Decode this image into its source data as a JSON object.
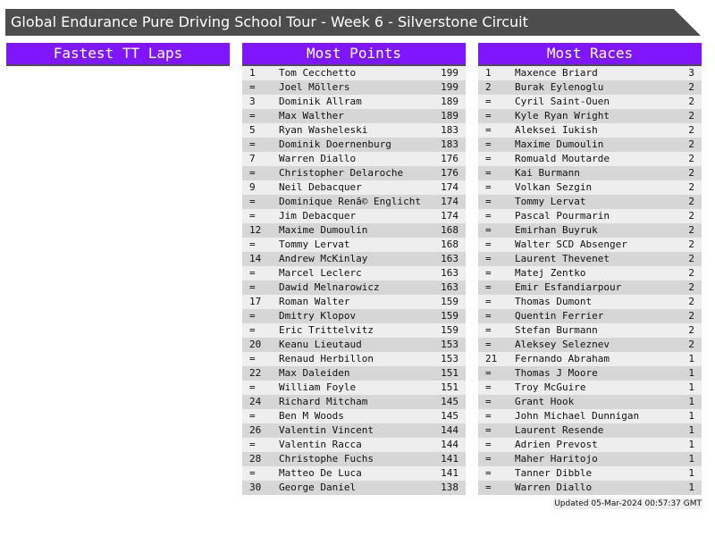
{
  "title": "Global Endurance Pure Driving School Tour - Week 6 - Silverstone Circuit",
  "colors": {
    "header_bg": "#8015ff",
    "title_bg": "#4d4d4d",
    "row_light": "#eeeeee",
    "row_dark": "#d6d6d6"
  },
  "panels": {
    "fastest_tt": {
      "title": "Fastest TT Laps",
      "rows": []
    },
    "most_points": {
      "title": "Most Points",
      "rows": [
        [
          "1",
          "Tom Cecchetto",
          "199"
        ],
        [
          "=",
          "Joel Möllers",
          "199"
        ],
        [
          "3",
          "Dominik Allram",
          "189"
        ],
        [
          "=",
          "Max Walther",
          "189"
        ],
        [
          "5",
          "Ryan Washeleski",
          "183"
        ],
        [
          "=",
          "Dominik Doernenburg",
          "183"
        ],
        [
          "7",
          "Warren Diallo",
          "176"
        ],
        [
          "=",
          "Christopher Delaroche",
          "176"
        ],
        [
          "9",
          "Neil Debacquer",
          "174"
        ],
        [
          "=",
          "Dominique Renã© Englicht",
          "174"
        ],
        [
          "=",
          "Jim Debacquer",
          "174"
        ],
        [
          "12",
          "Maxime Dumoulin",
          "168"
        ],
        [
          "=",
          "Tommy Lervat",
          "168"
        ],
        [
          "14",
          "Andrew McKinlay",
          "163"
        ],
        [
          "=",
          "Marcel Leclerc",
          "163"
        ],
        [
          "=",
          "Dawid Melnarowicz",
          "163"
        ],
        [
          "17",
          "Roman Walter",
          "159"
        ],
        [
          "=",
          "Dmitry Klopov",
          "159"
        ],
        [
          "=",
          "Eric Trittelvitz",
          "159"
        ],
        [
          "20",
          "Keanu Lieutaud",
          "153"
        ],
        [
          "=",
          "Renaud Herbillon",
          "153"
        ],
        [
          "22",
          "Max Daleiden",
          "151"
        ],
        [
          "=",
          "William Foyle",
          "151"
        ],
        [
          "24",
          "Richard Mitcham",
          "145"
        ],
        [
          "=",
          "Ben M Woods",
          "145"
        ],
        [
          "26",
          "Valentin Vincent",
          "144"
        ],
        [
          "=",
          "Valentin Racca",
          "144"
        ],
        [
          "28",
          "Christophe Fuchs",
          "141"
        ],
        [
          "=",
          "Matteo De Luca",
          "141"
        ],
        [
          "30",
          "George Daniel",
          "138"
        ]
      ]
    },
    "most_races": {
      "title": "Most Races",
      "rows": [
        [
          "1",
          "Maxence Briard",
          "3"
        ],
        [
          "2",
          "Burak Eylenoglu",
          "2"
        ],
        [
          "=",
          "Cyril Saint-Ouen",
          "2"
        ],
        [
          "=",
          "Kyle Ryan Wright",
          "2"
        ],
        [
          "=",
          "Aleksei Iukish",
          "2"
        ],
        [
          "=",
          "Maxime Dumoulin",
          "2"
        ],
        [
          "=",
          "Romuald Moutarde",
          "2"
        ],
        [
          "=",
          "Kai Burmann",
          "2"
        ],
        [
          "=",
          "Volkan Sezgin",
          "2"
        ],
        [
          "=",
          "Tommy Lervat",
          "2"
        ],
        [
          "=",
          "Pascal Pourmarin",
          "2"
        ],
        [
          "=",
          "Emirhan Buyruk",
          "2"
        ],
        [
          "=",
          "Walter SCD Absenger",
          "2"
        ],
        [
          "=",
          "Laurent Thevenet",
          "2"
        ],
        [
          "=",
          "Matej Zentko",
          "2"
        ],
        [
          "=",
          "Emir Esfandiarpour",
          "2"
        ],
        [
          "=",
          "Thomas Dumont",
          "2"
        ],
        [
          "=",
          "Quentin Ferrier",
          "2"
        ],
        [
          "=",
          "Stefan Burmann",
          "2"
        ],
        [
          "=",
          "Aleksey Seleznev",
          "2"
        ],
        [
          "21",
          "Fernando Abraham",
          "1"
        ],
        [
          "=",
          "Thomas J Moore",
          "1"
        ],
        [
          "=",
          "Troy McGuire",
          "1"
        ],
        [
          "=",
          "Grant Hook",
          "1"
        ],
        [
          "=",
          "John Michael Dunnigan",
          "1"
        ],
        [
          "=",
          "Laurent Resende",
          "1"
        ],
        [
          "=",
          "Adrien Prevost",
          "1"
        ],
        [
          "=",
          "Maher Haritojo",
          "1"
        ],
        [
          "=",
          "Tanner Dibble",
          "1"
        ],
        [
          "=",
          "Warren Diallo",
          "1"
        ]
      ]
    }
  },
  "updated": "Updated 05-Mar-2024 00:57:37 GMT"
}
